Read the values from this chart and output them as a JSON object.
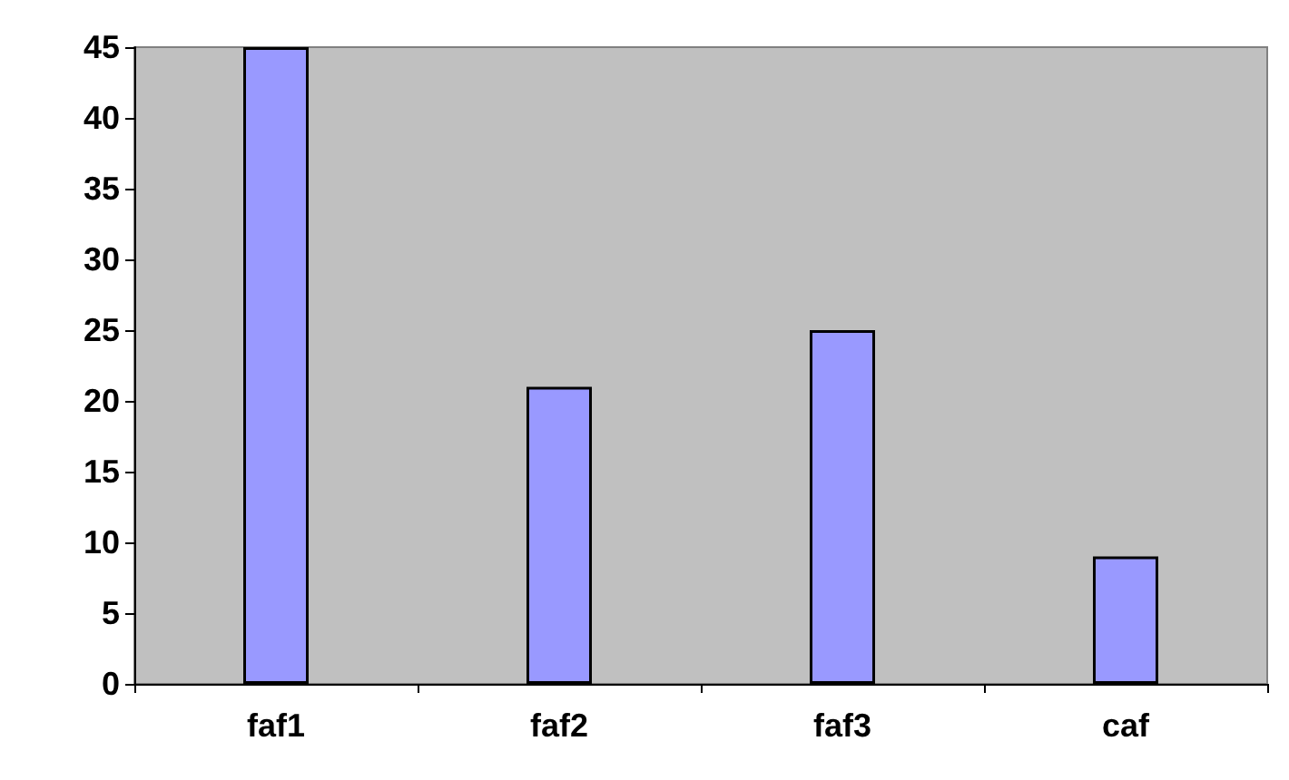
{
  "chart_data": {
    "type": "bar",
    "categories": [
      "faf1",
      "faf2",
      "faf3",
      "caf"
    ],
    "values": [
      45,
      21,
      25,
      9
    ],
    "color": "#9999ff",
    "ylim": [
      0,
      45
    ],
    "yticks": [
      0,
      5,
      10,
      15,
      20,
      25,
      30,
      35,
      40,
      45
    ],
    "grid": false
  }
}
